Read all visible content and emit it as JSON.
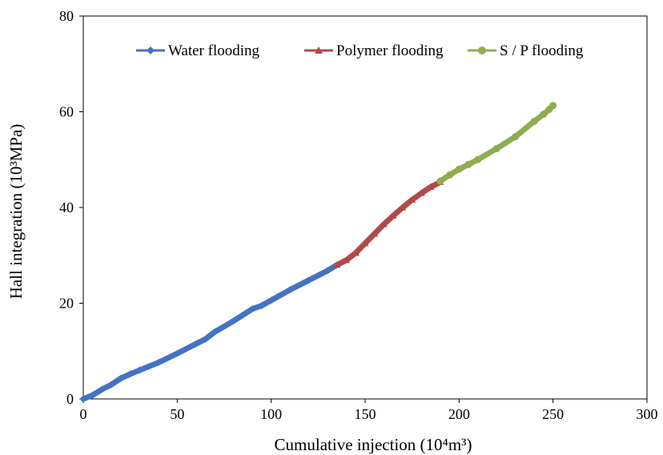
{
  "chart_data": {
    "type": "line",
    "xlabel": "Cumulative injection (10⁴m³)",
    "ylabel": "Hall integration  (10³MPa)",
    "xlim": [
      0,
      300
    ],
    "ylim": [
      0,
      80
    ],
    "xticks": [
      0,
      50,
      100,
      150,
      200,
      250,
      300
    ],
    "yticks": [
      0,
      20,
      40,
      60,
      80
    ],
    "grid": false,
    "legend_position": "top",
    "series": [
      {
        "name": "Water flooding",
        "color": "#4472c4",
        "marker": "diamond",
        "x": [
          0,
          5,
          10,
          15,
          20,
          25,
          30,
          40,
          50,
          60,
          65,
          70,
          80,
          90,
          95,
          100,
          110,
          120,
          130,
          135
        ],
        "y": [
          0,
          0.8,
          2,
          3,
          4.3,
          5.2,
          6,
          7.6,
          9.5,
          11.5,
          12.5,
          14,
          16.3,
          18.8,
          19.5,
          20.6,
          22.8,
          24.8,
          26.8,
          28
        ]
      },
      {
        "name": "Polymer flooding",
        "color": "#b04a48",
        "marker": "triangle",
        "x": [
          135,
          140,
          145,
          150,
          155,
          160,
          165,
          170,
          175,
          180,
          185,
          190
        ],
        "y": [
          28,
          29,
          30.5,
          32.5,
          34.5,
          36.5,
          38.3,
          40,
          41.6,
          43,
          44.3,
          45.3
        ]
      },
      {
        "name": "S / P flooding",
        "color": "#8fad4f",
        "marker": "circle",
        "x": [
          190,
          195,
          200,
          205,
          210,
          220,
          230,
          240,
          245,
          248,
          250
        ],
        "y": [
          45.5,
          46.8,
          48,
          49,
          50,
          52.3,
          54.8,
          58,
          59.5,
          60.5,
          61.3
        ]
      }
    ]
  }
}
